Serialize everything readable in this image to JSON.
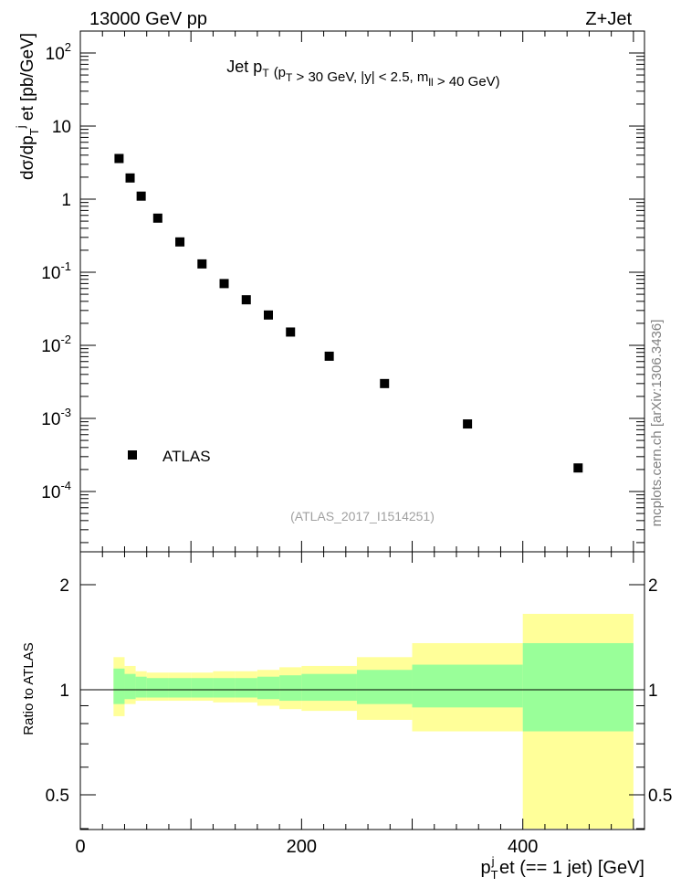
{
  "header": {
    "left": "13000 GeV pp",
    "right": "Z+Jet"
  },
  "side_label": "mcplots.cern.ch [arXiv:1306.3436]",
  "watermark": "(ATLAS_2017_I1514251)",
  "chart_data": [
    {
      "type": "scatter",
      "title": "Jet p_T (p_T > 30 GeV, |y| < 2.5, m_ll > 40 GeV)",
      "ylabel": "dσ/dp_T^j et [pb/GeV]",
      "yscale": "log",
      "xlim": [
        0,
        510
      ],
      "ylim": [
        1e-05,
        200
      ],
      "legend": {
        "position": "lower-left",
        "entries": [
          "ATLAS"
        ]
      },
      "y_tick_labels": [
        "10^2",
        "10",
        "1",
        "10^-1",
        "10^-2",
        "10^-3",
        "10^-4"
      ],
      "series": [
        {
          "name": "ATLAS",
          "marker": "square",
          "color": "#000000",
          "x": [
            35,
            45,
            55,
            70,
            90,
            110,
            130,
            150,
            170,
            190,
            225,
            275,
            350,
            450
          ],
          "y": [
            3.6,
            1.95,
            1.1,
            0.55,
            0.26,
            0.13,
            0.07,
            0.042,
            0.026,
            0.0152,
            0.0071,
            0.003,
            0.00084,
            0.00021
          ]
        }
      ]
    },
    {
      "type": "area",
      "ylabel": "Ratio to ATLAS",
      "xlabel": "p_T^j et (== 1 jet) [GeV]",
      "xlim": [
        0,
        510
      ],
      "ylim": [
        0.4,
        2.3
      ],
      "x_tick_labels": [
        "0",
        "200",
        "400"
      ],
      "y_tick_labels": [
        "0.5",
        "1",
        "2"
      ],
      "reference_line": 1,
      "bins": {
        "edges": [
          30,
          40,
          50,
          60,
          80,
          100,
          120,
          140,
          160,
          180,
          200,
          250,
          300,
          400,
          500
        ],
        "inner_band": {
          "color": "#99ff99",
          "low": [
            0.91,
            0.94,
            0.95,
            0.95,
            0.95,
            0.95,
            0.95,
            0.95,
            0.94,
            0.93,
            0.93,
            0.91,
            0.89,
            0.76
          ],
          "high": [
            1.15,
            1.11,
            1.09,
            1.08,
            1.08,
            1.08,
            1.08,
            1.08,
            1.09,
            1.1,
            1.11,
            1.14,
            1.18,
            1.36
          ]
        },
        "outer_band": {
          "color": "#ffff99",
          "low": [
            0.84,
            0.91,
            0.93,
            0.93,
            0.93,
            0.93,
            0.92,
            0.92,
            0.9,
            0.88,
            0.87,
            0.82,
            0.76,
            0.4
          ],
          "high": [
            1.24,
            1.17,
            1.13,
            1.12,
            1.12,
            1.12,
            1.13,
            1.13,
            1.14,
            1.16,
            1.17,
            1.24,
            1.36,
            1.65
          ]
        }
      }
    }
  ]
}
